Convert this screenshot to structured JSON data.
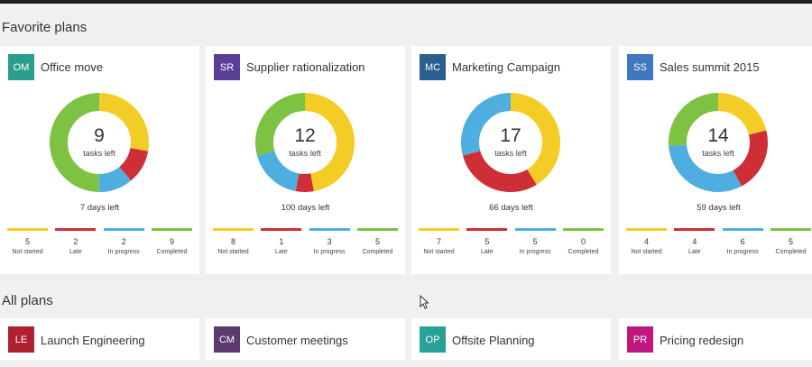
{
  "sections": {
    "favorites_title": "Favorite plans",
    "all_title": "All plans"
  },
  "status_colors": {
    "not_started": "#f4cc26",
    "late": "#cf2e36",
    "in_progress": "#4eaee0",
    "completed": "#7dc243"
  },
  "favorite_plans": [
    {
      "initials": "OM",
      "name": "Office move",
      "badge_color": "#2a9d8f",
      "tasks_left": "9",
      "tasks_left_label": "tasks left",
      "days_left": "7 days left",
      "stats": [
        {
          "value": "5",
          "label": "Not started"
        },
        {
          "value": "2",
          "label": "Late"
        },
        {
          "value": "2",
          "label": "In progress"
        },
        {
          "value": "9",
          "label": "Completed"
        }
      ]
    },
    {
      "initials": "SR",
      "name": "Supplier rationalization",
      "badge_color": "#5a3f99",
      "tasks_left": "12",
      "tasks_left_label": "tasks left",
      "days_left": "100 days left",
      "stats": [
        {
          "value": "8",
          "label": "Not started"
        },
        {
          "value": "1",
          "label": "Late"
        },
        {
          "value": "3",
          "label": "In progress"
        },
        {
          "value": "5",
          "label": "Completed"
        }
      ]
    },
    {
      "initials": "MC",
      "name": "Marketing Campaign",
      "badge_color": "#2a5f8f",
      "tasks_left": "17",
      "tasks_left_label": "tasks left",
      "days_left": "66 days left",
      "stats": [
        {
          "value": "7",
          "label": "Not started"
        },
        {
          "value": "5",
          "label": "Late"
        },
        {
          "value": "5",
          "label": "In progress"
        },
        {
          "value": "0",
          "label": "Completed"
        }
      ]
    },
    {
      "initials": "SS",
      "name": "Sales summit 2015",
      "badge_color": "#3f78c0",
      "tasks_left": "14",
      "tasks_left_label": "tasks left",
      "days_left": "59 days left",
      "stats": [
        {
          "value": "4",
          "label": "Not started"
        },
        {
          "value": "4",
          "label": "Late"
        },
        {
          "value": "6",
          "label": "In progress"
        },
        {
          "value": "5",
          "label": "Completed"
        }
      ]
    }
  ],
  "all_plans": [
    {
      "initials": "LE",
      "name": "Launch Engineering",
      "badge_color": "#b0202e"
    },
    {
      "initials": "CM",
      "name": "Customer meetings",
      "badge_color": "#5c3a6e"
    },
    {
      "initials": "OP",
      "name": "Offsite Planning",
      "badge_color": "#2aa198"
    },
    {
      "initials": "PR",
      "name": "Pricing redesign",
      "badge_color": "#c0187e"
    }
  ]
}
